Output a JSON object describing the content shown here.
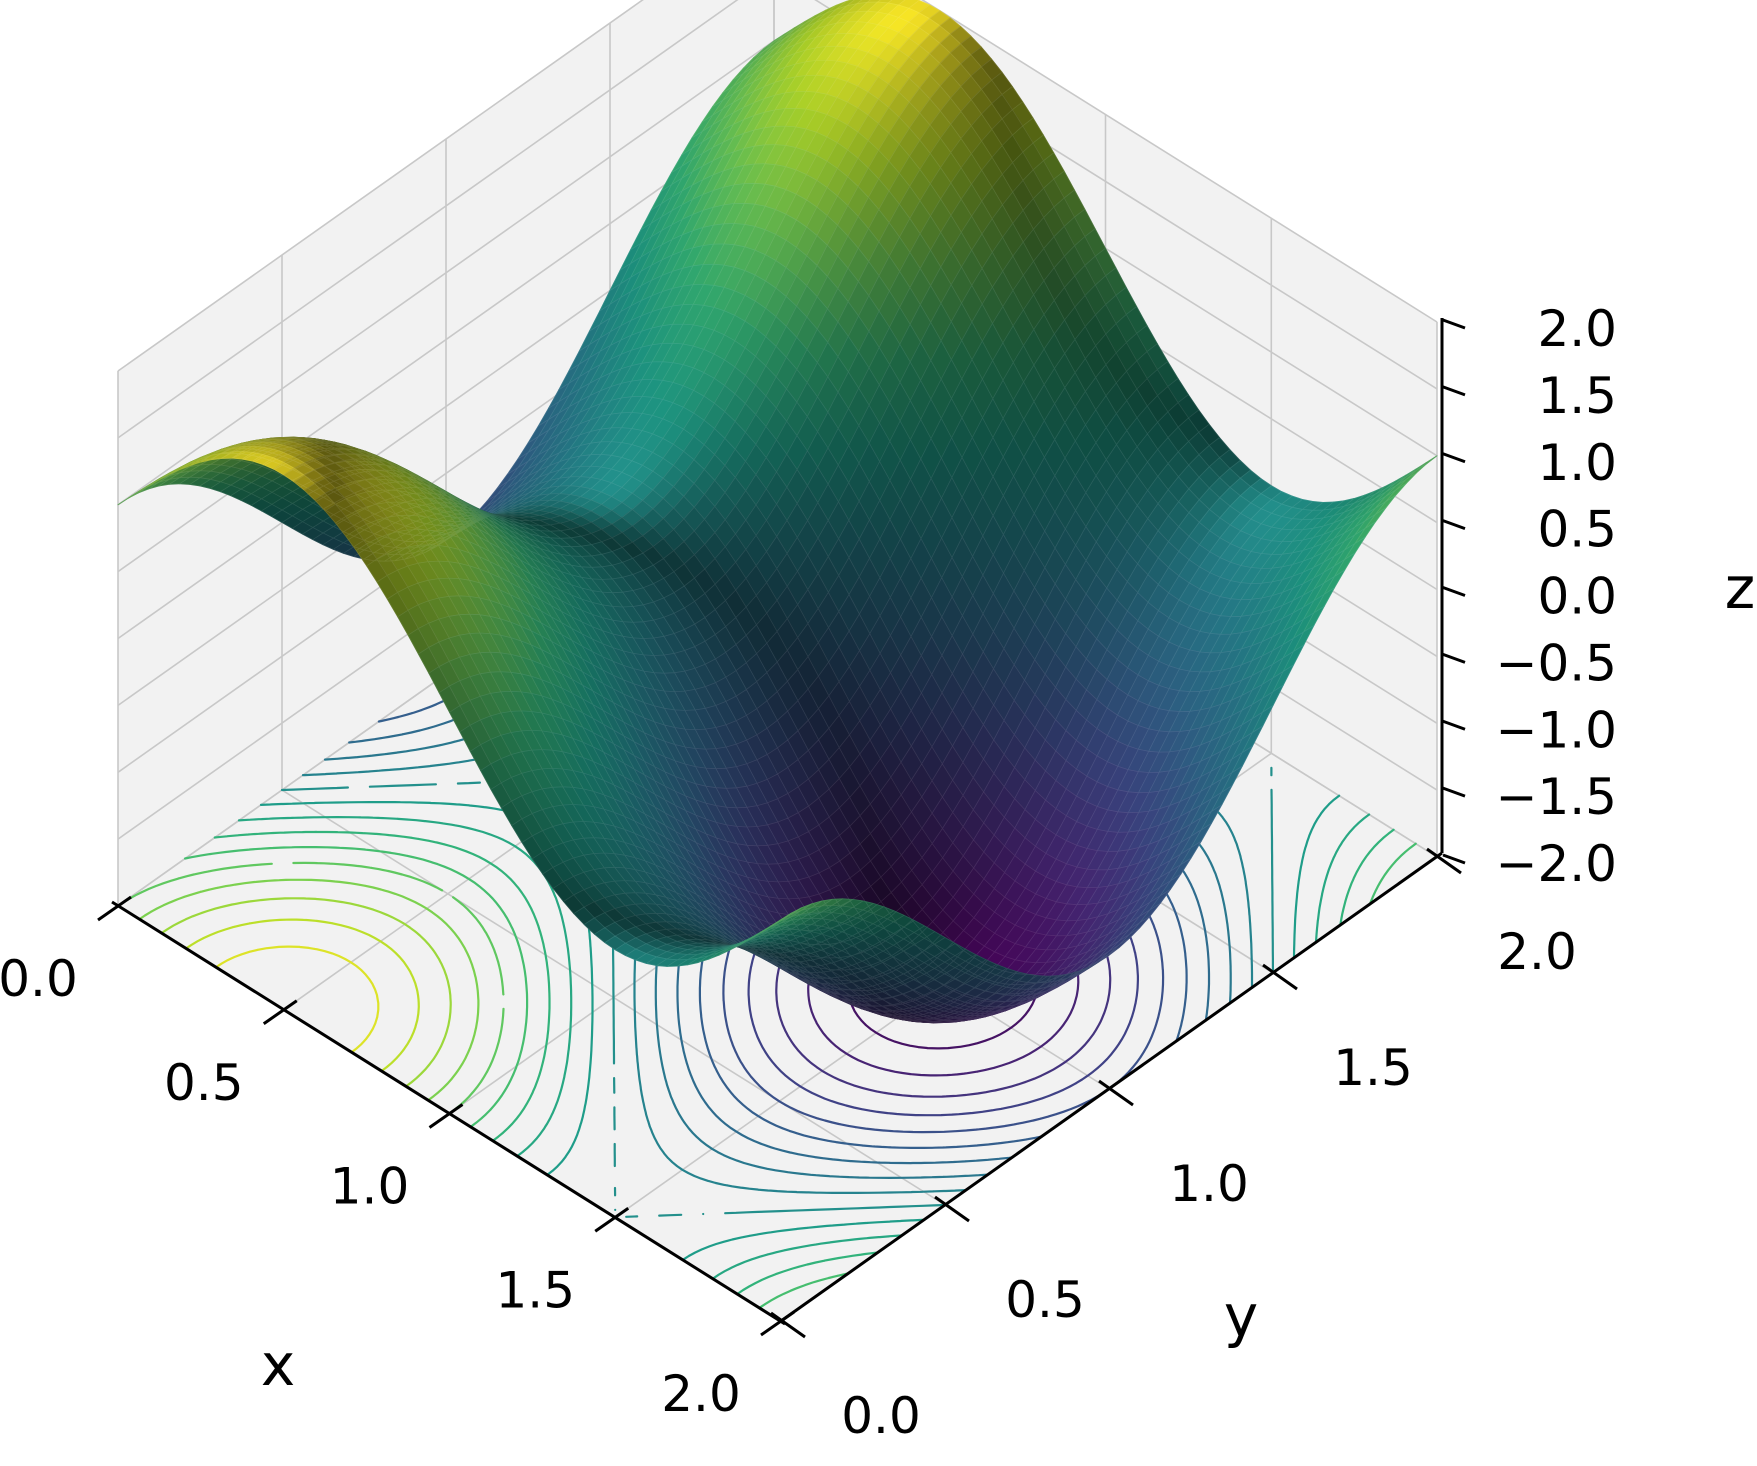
{
  "chart_data": {
    "type": "surface3d",
    "title": "",
    "function": "z = sin(pi*x) + cos(pi*y)",
    "surface_colormap": "viridis",
    "contour_colormap": "viridis",
    "contour_projection": "z = -2.0 plane",
    "grid": true,
    "xlabel": "x",
    "ylabel": "y",
    "zlabel": "z",
    "xlim": [
      0,
      2
    ],
    "ylim": [
      0,
      2
    ],
    "zlim": [
      -2,
      2
    ],
    "xticks": [
      "0.0",
      "0.5",
      "1.0",
      "1.5",
      "2.0"
    ],
    "yticks": [
      "0.0",
      "0.5",
      "1.0",
      "1.5",
      "2.0"
    ],
    "zticks": [
      "−2.0",
      "−1.5",
      "−1.0",
      "−0.5",
      "0.0",
      "0.5",
      "1.0",
      "1.5",
      "2.0"
    ],
    "x_tick_values": [
      0,
      0.5,
      1.0,
      1.5,
      2.0
    ],
    "y_tick_values": [
      0,
      0.5,
      1.0,
      1.5,
      2.0
    ],
    "z_tick_values": [
      -2,
      -1.5,
      -1,
      -0.5,
      0,
      0.5,
      1,
      1.5,
      2
    ],
    "surface_extrema": [
      {
        "x": 0.5,
        "y": 0.0,
        "z": 2.0
      },
      {
        "x": 0.5,
        "y": 2.0,
        "z": 2.0
      },
      {
        "x": 1.5,
        "y": 1.0,
        "z": -2.0
      },
      {
        "x": 0.5,
        "y": 1.0,
        "z": 0.0
      },
      {
        "x": 1.5,
        "y": 0.0,
        "z": 0.0
      }
    ],
    "contour_levels": [
      -1.8,
      -1.6,
      -1.4,
      -1.2,
      -1.0,
      -0.8,
      -0.6,
      -0.4,
      -0.2,
      0.0,
      0.2,
      0.4,
      0.6,
      0.8,
      1.0,
      1.2,
      1.4,
      1.6,
      1.8
    ]
  },
  "colors": {
    "pane": "#f2f2f2",
    "grid": "#c8c8c8",
    "axis": "#000000",
    "viridis": [
      "#440154",
      "#482878",
      "#3e4989",
      "#31688e",
      "#26828e",
      "#1f9e89",
      "#35b779",
      "#6ece58",
      "#b5de2b",
      "#fde725"
    ]
  }
}
